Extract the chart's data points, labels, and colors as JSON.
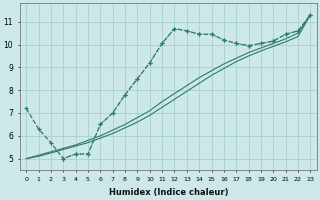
{
  "xlabel": "Humidex (Indice chaleur)",
  "bg_color": "#cce8e8",
  "grid_color": "#aacfcf",
  "line_color": "#2d7a6e",
  "line1_x": [
    0,
    1,
    2,
    3,
    4,
    5,
    6,
    7,
    8,
    9,
    10,
    11,
    12,
    13,
    14,
    15,
    16,
    17,
    18,
    19,
    20,
    21,
    22,
    23
  ],
  "line1_y": [
    7.2,
    6.3,
    5.7,
    5.0,
    5.2,
    5.2,
    6.5,
    7.0,
    7.8,
    8.5,
    9.2,
    10.05,
    10.7,
    10.6,
    10.45,
    10.45,
    10.2,
    10.05,
    9.95,
    10.05,
    10.15,
    10.45,
    10.6,
    11.3
  ],
  "line2_x": [
    0,
    1,
    2,
    3,
    4,
    5,
    6,
    7,
    8,
    9,
    10,
    11,
    12,
    13,
    14,
    15,
    16,
    17,
    18,
    19,
    20,
    21,
    22,
    23
  ],
  "line2_y": [
    5.0,
    5.15,
    5.3,
    5.45,
    5.6,
    5.8,
    6.0,
    6.25,
    6.5,
    6.8,
    7.1,
    7.5,
    7.85,
    8.2,
    8.55,
    8.85,
    9.15,
    9.4,
    9.65,
    9.85,
    10.05,
    10.25,
    10.5,
    11.3
  ],
  "line3_x": [
    0,
    1,
    2,
    3,
    4,
    5,
    6,
    7,
    8,
    9,
    10,
    11,
    12,
    13,
    14,
    15,
    16,
    17,
    18,
    19,
    20,
    21,
    22,
    23
  ],
  "line3_y": [
    5.0,
    5.1,
    5.25,
    5.4,
    5.55,
    5.7,
    5.9,
    6.1,
    6.35,
    6.6,
    6.9,
    7.25,
    7.6,
    7.95,
    8.3,
    8.65,
    8.95,
    9.25,
    9.5,
    9.72,
    9.92,
    10.12,
    10.35,
    11.3
  ],
  "line4_x": [
    3,
    4,
    5,
    6,
    7,
    8,
    9,
    10,
    11,
    12,
    13,
    14,
    15,
    16,
    17,
    18,
    19,
    20,
    21,
    22,
    23
  ],
  "line4_y": [
    5.0,
    5.2,
    5.2,
    6.5,
    7.0,
    7.8,
    8.5,
    9.2,
    10.05,
    10.7,
    10.6,
    10.45,
    10.45,
    10.2,
    10.05,
    9.95,
    10.05,
    10.15,
    10.45,
    10.6,
    11.3
  ],
  "xmin": -0.5,
  "xmax": 23.5,
  "ymin": 4.5,
  "ymax": 11.8,
  "yticks": [
    5,
    6,
    7,
    8,
    9,
    10,
    11
  ],
  "xticks": [
    0,
    1,
    2,
    3,
    4,
    5,
    6,
    7,
    8,
    9,
    10,
    11,
    12,
    13,
    14,
    15,
    16,
    17,
    18,
    19,
    20,
    21,
    22,
    23
  ]
}
